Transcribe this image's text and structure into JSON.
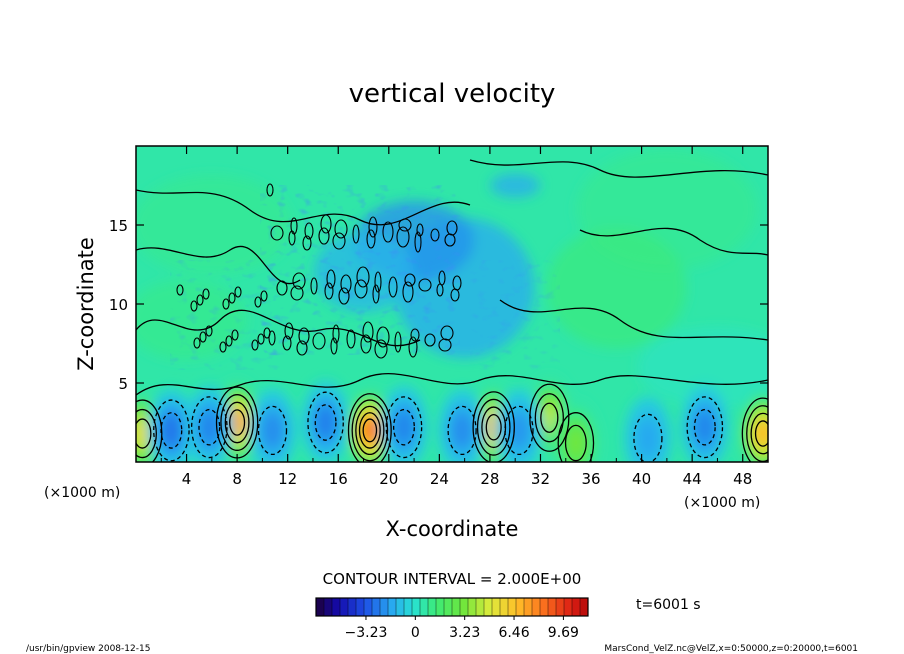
{
  "chart_data": {
    "type": "heatmap",
    "title": "vertical velocity",
    "xlabel": "X-coordinate",
    "ylabel": "Z-coordinate",
    "x_unit_left": "(×1000 m)",
    "x_unit_right": "(×1000 m)",
    "xlim": [
      0,
      50
    ],
    "ylim": [
      0,
      20
    ],
    "x_ticks": [
      4,
      8,
      12,
      16,
      20,
      24,
      28,
      32,
      36,
      40,
      44,
      48
    ],
    "y_ticks": [
      5,
      10,
      15
    ],
    "contour_interval_text": "CONTOUR INTERVAL = 2.000E+00",
    "colorbar_ticks": [
      -3.23,
      0,
      3.23,
      6.46,
      9.69
    ],
    "colorbar_tick_labels": [
      "−3.23",
      "0",
      "3.23",
      "6.46",
      "9.69"
    ],
    "colorbar_range": [
      -6.5,
      11.3
    ],
    "time_label": "t=6001 s",
    "footer_left": "/usr/bin/gpview   2008-12-15",
    "footer_right": "MarsCond_VelZ.nc@VelZ,x=0:50000,z=0:20000,t=6001",
    "updrafts": [
      {
        "x": 0.5,
        "z": 1.8,
        "w": 6.5
      },
      {
        "x": 8.0,
        "z": 2.5,
        "w": 8.5
      },
      {
        "x": 18.5,
        "z": 2.0,
        "w": 9.7
      },
      {
        "x": 28.3,
        "z": 2.2,
        "w": 7.5
      },
      {
        "x": 32.7,
        "z": 2.8,
        "w": 5.5
      },
      {
        "x": 34.8,
        "z": 1.2,
        "w": 4.0
      },
      {
        "x": 49.6,
        "z": 1.8,
        "w": 8.0
      }
    ],
    "downdrafts": [
      {
        "x": 2.8,
        "z": 2.0,
        "w": -3.5
      },
      {
        "x": 5.8,
        "z": 2.2,
        "w": -3.0
      },
      {
        "x": 10.8,
        "z": 2.0,
        "w": -2.8
      },
      {
        "x": 15.0,
        "z": 2.5,
        "w": -3.2
      },
      {
        "x": 21.2,
        "z": 2.2,
        "w": -3.0
      },
      {
        "x": 25.8,
        "z": 2.0,
        "w": -2.8
      },
      {
        "x": 30.3,
        "z": 2.0,
        "w": -2.5
      },
      {
        "x": 40.5,
        "z": 1.5,
        "w": -2.0
      },
      {
        "x": 45.0,
        "z": 2.2,
        "w": -3.0
      }
    ]
  }
}
